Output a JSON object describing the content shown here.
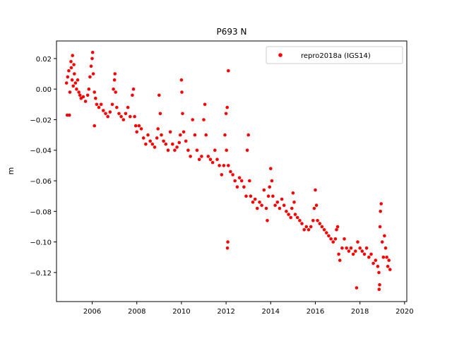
{
  "chart_data": {
    "type": "scatter",
    "title": "P693 N",
    "xlabel": "",
    "ylabel": "m",
    "xlim": [
      2004.4,
      2020.1
    ],
    "ylim": [
      -0.139,
      0.0315
    ],
    "x_ticks": [
      2006,
      2008,
      2010,
      2012,
      2014,
      2016,
      2018,
      2020
    ],
    "y_ticks": [
      0.02,
      0.0,
      -0.02,
      -0.04,
      -0.06,
      -0.08,
      -0.1,
      -0.12
    ],
    "y_tick_labels": [
      "0.02",
      "0.00",
      "−0.02",
      "−0.04",
      "−0.06",
      "−0.08",
      "−0.10",
      "−0.12"
    ],
    "grid": false,
    "legend_position": "top-right",
    "series": [
      {
        "name": "repro2018a (IGS14)",
        "color": "#ff0000",
        "marker": "dot",
        "points": [
          [
            2004.85,
            0.004
          ],
          [
            2004.9,
            0.008
          ],
          [
            2004.95,
            0.012
          ],
          [
            2005.0,
            -0.002
          ],
          [
            2005.05,
            0.018
          ],
          [
            2005.1,
            0.006
          ],
          [
            2005.15,
            0.002
          ],
          [
            2005.2,
            0.01
          ],
          [
            2005.25,
            0.004
          ],
          [
            2005.3,
            0.0
          ],
          [
            2005.35,
            0.006
          ],
          [
            2005.4,
            -0.002
          ],
          [
            2004.88,
            -0.017
          ],
          [
            2004.98,
            -0.017
          ],
          [
            2005.12,
            0.022
          ],
          [
            2005.06,
            0.014
          ],
          [
            2005.18,
            0.016
          ],
          [
            2005.45,
            -0.004
          ],
          [
            2005.5,
            -0.006
          ],
          [
            2005.6,
            -0.005
          ],
          [
            2005.7,
            -0.008
          ],
          [
            2005.8,
            -0.004
          ],
          [
            2005.85,
            0.0
          ],
          [
            2005.9,
            0.008
          ],
          [
            2005.95,
            0.015
          ],
          [
            2006.0,
            0.02
          ],
          [
            2006.02,
            0.024
          ],
          [
            2006.05,
            0.01
          ],
          [
            2006.1,
            -0.002
          ],
          [
            2006.15,
            -0.006
          ],
          [
            2006.2,
            -0.01
          ],
          [
            2006.3,
            -0.012
          ],
          [
            2006.4,
            -0.01
          ],
          [
            2006.5,
            -0.014
          ],
          [
            2006.1,
            -0.024
          ],
          [
            2006.6,
            -0.016
          ],
          [
            2006.7,
            -0.018
          ],
          [
            2006.8,
            -0.015
          ],
          [
            2006.9,
            -0.01
          ],
          [
            2006.95,
            0.0
          ],
          [
            2007.0,
            0.006
          ],
          [
            2007.02,
            0.01
          ],
          [
            2007.05,
            -0.002
          ],
          [
            2007.1,
            -0.012
          ],
          [
            2007.2,
            -0.016
          ],
          [
            2007.3,
            -0.018
          ],
          [
            2007.4,
            -0.02
          ],
          [
            2007.5,
            -0.016
          ],
          [
            2007.6,
            -0.012
          ],
          [
            2007.7,
            -0.018
          ],
          [
            2007.8,
            -0.004
          ],
          [
            2007.85,
            0.0
          ],
          [
            2007.9,
            -0.018
          ],
          [
            2007.95,
            -0.024
          ],
          [
            2008.0,
            -0.028
          ],
          [
            2008.1,
            -0.024
          ],
          [
            2008.2,
            -0.026
          ],
          [
            2008.3,
            -0.032
          ],
          [
            2008.4,
            -0.036
          ],
          [
            2008.5,
            -0.03
          ],
          [
            2008.6,
            -0.034
          ],
          [
            2008.7,
            -0.036
          ],
          [
            2008.8,
            -0.038
          ],
          [
            2008.9,
            -0.032
          ],
          [
            2008.95,
            -0.026
          ],
          [
            2009.0,
            -0.004
          ],
          [
            2009.05,
            -0.016
          ],
          [
            2009.1,
            -0.03
          ],
          [
            2009.2,
            -0.034
          ],
          [
            2009.3,
            -0.036
          ],
          [
            2009.4,
            -0.04
          ],
          [
            2009.5,
            -0.028
          ],
          [
            2009.6,
            -0.036
          ],
          [
            2009.7,
            -0.04
          ],
          [
            2009.8,
            -0.038
          ],
          [
            2009.9,
            -0.035
          ],
          [
            2009.95,
            -0.03
          ],
          [
            2010.0,
            0.006
          ],
          [
            2010.02,
            -0.002
          ],
          [
            2010.05,
            -0.016
          ],
          [
            2010.1,
            -0.028
          ],
          [
            2010.2,
            -0.034
          ],
          [
            2010.3,
            -0.04
          ],
          [
            2010.4,
            -0.044
          ],
          [
            2010.5,
            -0.02
          ],
          [
            2010.6,
            -0.03
          ],
          [
            2010.7,
            -0.04
          ],
          [
            2010.8,
            -0.046
          ],
          [
            2010.9,
            -0.044
          ],
          [
            2011.0,
            -0.02
          ],
          [
            2011.05,
            -0.01
          ],
          [
            2011.1,
            -0.03
          ],
          [
            2011.2,
            -0.044
          ],
          [
            2011.3,
            -0.046
          ],
          [
            2011.4,
            -0.048
          ],
          [
            2011.5,
            -0.04
          ],
          [
            2011.6,
            -0.046
          ],
          [
            2011.7,
            -0.05
          ],
          [
            2011.8,
            -0.056
          ],
          [
            2011.9,
            -0.05
          ],
          [
            2011.95,
            -0.03
          ],
          [
            2012.0,
            -0.016
          ],
          [
            2012.02,
            -0.04
          ],
          [
            2012.05,
            -0.012
          ],
          [
            2012.1,
            0.012
          ],
          [
            2012.08,
            -0.1
          ],
          [
            2012.06,
            -0.104
          ],
          [
            2012.1,
            -0.05
          ],
          [
            2012.2,
            -0.054
          ],
          [
            2012.3,
            -0.056
          ],
          [
            2012.4,
            -0.06
          ],
          [
            2012.5,
            -0.064
          ],
          [
            2012.6,
            -0.058
          ],
          [
            2012.7,
            -0.06
          ],
          [
            2012.8,
            -0.064
          ],
          [
            2012.9,
            -0.07
          ],
          [
            2012.95,
            -0.04
          ],
          [
            2013.0,
            -0.03
          ],
          [
            2013.05,
            -0.06
          ],
          [
            2013.1,
            -0.07
          ],
          [
            2013.2,
            -0.074
          ],
          [
            2013.3,
            -0.072
          ],
          [
            2013.4,
            -0.078
          ],
          [
            2013.5,
            -0.074
          ],
          [
            2013.6,
            -0.076
          ],
          [
            2013.7,
            -0.066
          ],
          [
            2013.8,
            -0.078
          ],
          [
            2013.85,
            -0.086
          ],
          [
            2013.9,
            -0.07
          ],
          [
            2013.95,
            -0.064
          ],
          [
            2014.0,
            -0.052
          ],
          [
            2014.05,
            -0.06
          ],
          [
            2014.1,
            -0.07
          ],
          [
            2014.2,
            -0.076
          ],
          [
            2014.3,
            -0.074
          ],
          [
            2014.4,
            -0.078
          ],
          [
            2014.5,
            -0.072
          ],
          [
            2014.6,
            -0.076
          ],
          [
            2014.7,
            -0.08
          ],
          [
            2014.8,
            -0.082
          ],
          [
            2014.9,
            -0.084
          ],
          [
            2014.95,
            -0.078
          ],
          [
            2015.0,
            -0.068
          ],
          [
            2015.05,
            -0.074
          ],
          [
            2015.1,
            -0.082
          ],
          [
            2015.2,
            -0.084
          ],
          [
            2015.3,
            -0.086
          ],
          [
            2015.4,
            -0.088
          ],
          [
            2015.5,
            -0.092
          ],
          [
            2015.6,
            -0.09
          ],
          [
            2015.7,
            -0.092
          ],
          [
            2015.8,
            -0.09
          ],
          [
            2015.9,
            -0.086
          ],
          [
            2015.95,
            -0.078
          ],
          [
            2016.0,
            -0.066
          ],
          [
            2016.05,
            -0.076
          ],
          [
            2016.1,
            -0.086
          ],
          [
            2016.2,
            -0.088
          ],
          [
            2016.3,
            -0.09
          ],
          [
            2016.4,
            -0.092
          ],
          [
            2016.5,
            -0.094
          ],
          [
            2016.6,
            -0.096
          ],
          [
            2016.7,
            -0.098
          ],
          [
            2016.8,
            -0.1
          ],
          [
            2016.9,
            -0.098
          ],
          [
            2016.95,
            -0.092
          ],
          [
            2017.0,
            -0.09
          ],
          [
            2017.05,
            -0.108
          ],
          [
            2017.1,
            -0.112
          ],
          [
            2017.2,
            -0.104
          ],
          [
            2017.3,
            -0.098
          ],
          [
            2017.4,
            -0.104
          ],
          [
            2017.5,
            -0.106
          ],
          [
            2017.6,
            -0.104
          ],
          [
            2017.7,
            -0.108
          ],
          [
            2017.8,
            -0.106
          ],
          [
            2017.85,
            -0.13
          ],
          [
            2017.9,
            -0.1
          ],
          [
            2018.0,
            -0.104
          ],
          [
            2018.1,
            -0.106
          ],
          [
            2018.2,
            -0.108
          ],
          [
            2018.3,
            -0.104
          ],
          [
            2018.4,
            -0.11
          ],
          [
            2018.5,
            -0.108
          ],
          [
            2018.6,
            -0.114
          ],
          [
            2018.7,
            -0.112
          ],
          [
            2018.8,
            -0.116
          ],
          [
            2018.85,
            -0.12
          ],
          [
            2018.9,
            -0.09
          ],
          [
            2018.92,
            -0.08
          ],
          [
            2018.95,
            -0.075
          ],
          [
            2019.0,
            -0.1
          ],
          [
            2019.05,
            -0.11
          ],
          [
            2019.1,
            -0.096
          ],
          [
            2019.15,
            -0.104
          ],
          [
            2019.2,
            -0.11
          ],
          [
            2019.25,
            -0.116
          ],
          [
            2019.3,
            -0.112
          ],
          [
            2019.35,
            -0.118
          ],
          [
            2018.88,
            -0.128
          ],
          [
            2018.86,
            -0.131
          ]
        ]
      }
    ]
  }
}
